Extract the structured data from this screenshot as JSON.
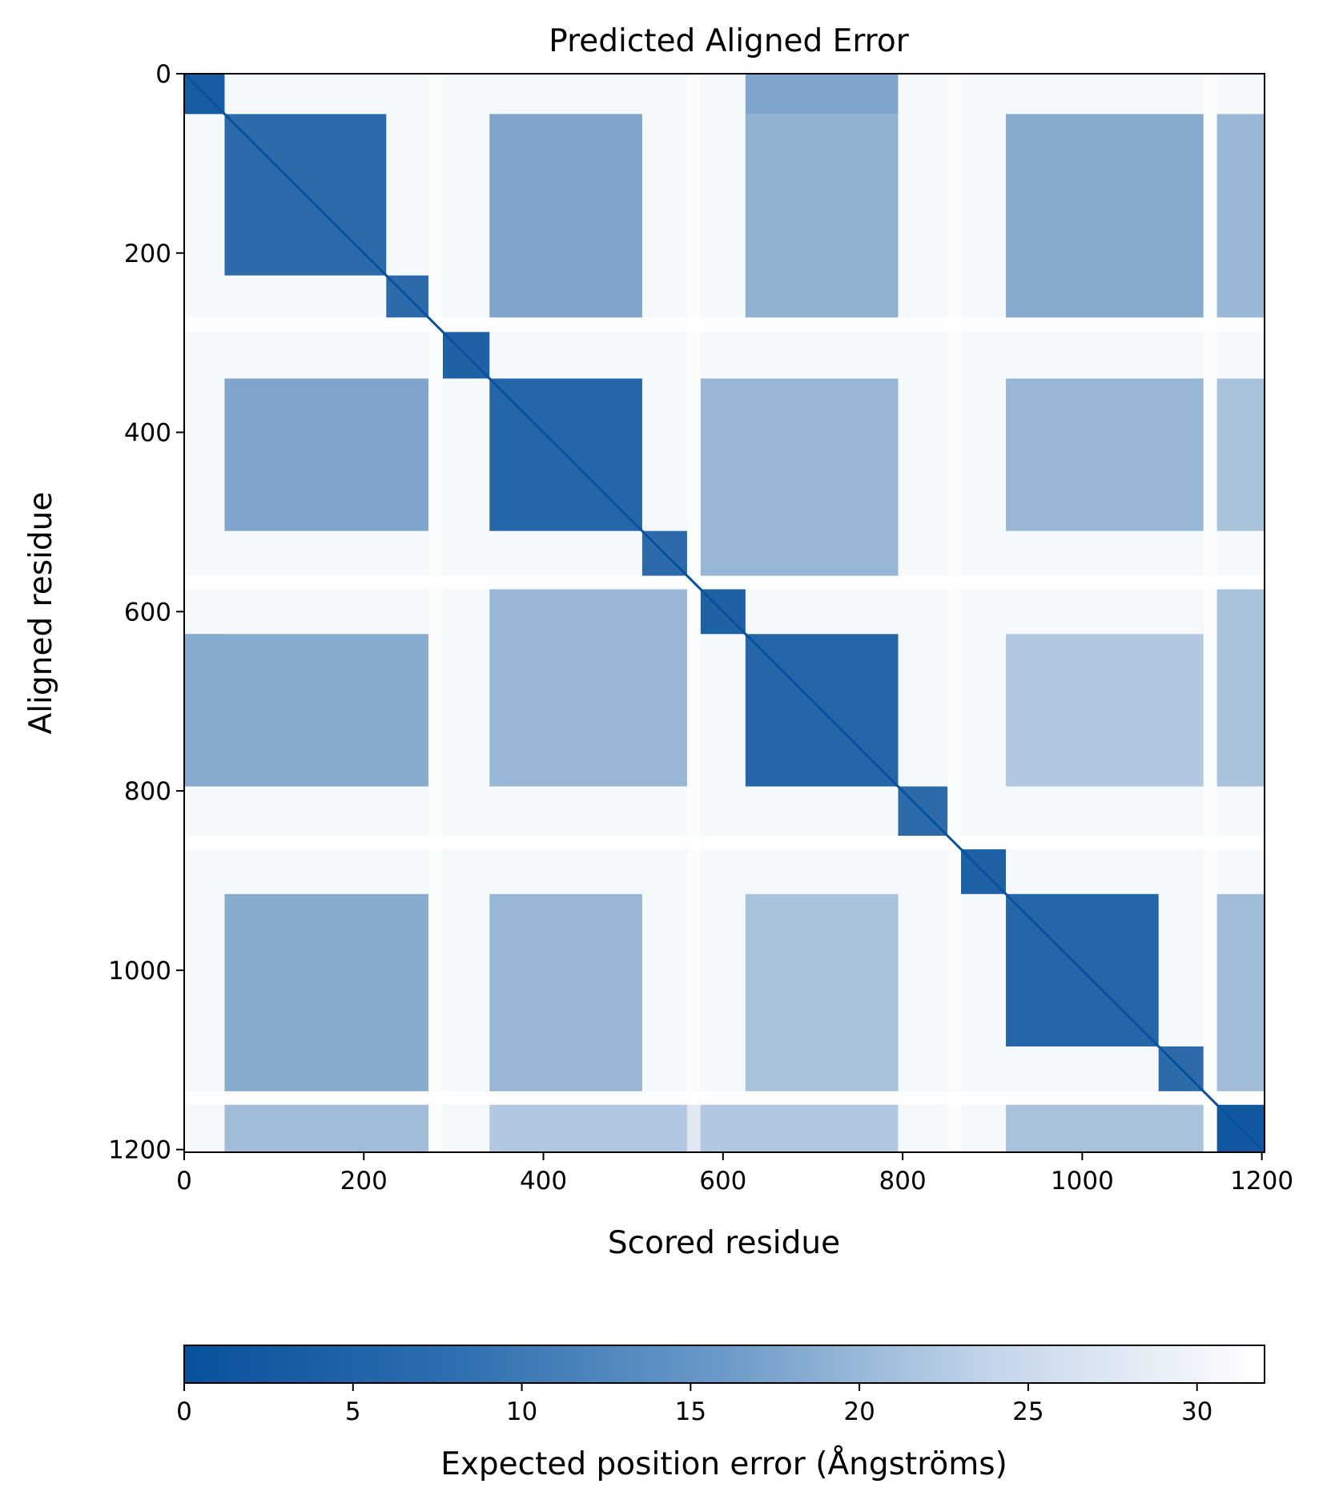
{
  "chart_data": [
    {
      "type": "heatmap",
      "title": "Predicted Aligned Error",
      "xlabel": "Scored residue",
      "ylabel": "Aligned residue",
      "n_residues": 1203,
      "xlim": [
        0,
        1203
      ],
      "ylim": [
        1203,
        0
      ],
      "x_ticks": [
        0,
        200,
        400,
        600,
        800,
        1000,
        1200
      ],
      "y_ticks": [
        0,
        200,
        400,
        600,
        800,
        1000,
        1200
      ],
      "x_tick_labels": [
        "0",
        "200",
        "400",
        "600",
        "800",
        "1000",
        "1200"
      ],
      "y_tick_labels": [
        "0",
        "200",
        "400",
        "600",
        "800",
        "1000",
        "1200"
      ],
      "value_range": [
        0,
        32
      ],
      "colormap": "Blues_r",
      "diagonal_value": 0,
      "background_value": 31,
      "domains": [
        {
          "start": 0,
          "end": 45,
          "value": 3
        },
        {
          "start": 45,
          "end": 225,
          "value": 6
        },
        {
          "start": 225,
          "end": 272,
          "value": 6
        },
        {
          "start": 288,
          "end": 340,
          "value": 4
        },
        {
          "start": 340,
          "end": 510,
          "value": 5
        },
        {
          "start": 510,
          "end": 560,
          "value": 6
        },
        {
          "start": 575,
          "end": 625,
          "value": 4
        },
        {
          "start": 625,
          "end": 795,
          "value": 5
        },
        {
          "start": 795,
          "end": 850,
          "value": 6
        },
        {
          "start": 865,
          "end": 915,
          "value": 4
        },
        {
          "start": 915,
          "end": 1085,
          "value": 5
        },
        {
          "start": 1085,
          "end": 1135,
          "value": 6
        },
        {
          "start": 1150,
          "end": 1203,
          "value": 2
        }
      ],
      "off_diagonal_blocks": [
        {
          "x": [
            45,
            272
          ],
          "y": [
            340,
            510
          ],
          "value": 17
        },
        {
          "x": [
            340,
            510
          ],
          "y": [
            45,
            272
          ],
          "value": 17
        },
        {
          "x": [
            45,
            272
          ],
          "y": [
            915,
            1135
          ],
          "value": 18
        },
        {
          "x": [
            915,
            1135
          ],
          "y": [
            45,
            272
          ],
          "value": 18
        },
        {
          "x": [
            340,
            510
          ],
          "y": [
            915,
            1135
          ],
          "value": 20
        },
        {
          "x": [
            915,
            1135
          ],
          "y": [
            340,
            510
          ],
          "value": 20
        },
        {
          "x": [
            0,
            272
          ],
          "y": [
            625,
            795
          ],
          "value": 18
        },
        {
          "x": [
            625,
            795
          ],
          "y": [
            45,
            272
          ],
          "value": 19
        },
        {
          "x": [
            340,
            560
          ],
          "y": [
            575,
            795
          ],
          "value": 20
        },
        {
          "x": [
            575,
            795
          ],
          "y": [
            340,
            560
          ],
          "value": 20
        },
        {
          "x": [
            625,
            795
          ],
          "y": [
            915,
            1135
          ],
          "value": 22
        },
        {
          "x": [
            915,
            1135
          ],
          "y": [
            625,
            795
          ],
          "value": 23
        },
        {
          "x": [
            625,
            795
          ],
          "y": [
            0,
            45
          ],
          "value": 17
        },
        {
          "x": [
            0,
            45
          ],
          "y": [
            625,
            795
          ],
          "value": 18
        },
        {
          "x": [
            1150,
            1203
          ],
          "y": [
            45,
            272
          ],
          "value": 20
        },
        {
          "x": [
            1150,
            1203
          ],
          "y": [
            340,
            510
          ],
          "value": 22
        },
        {
          "x": [
            1150,
            1203
          ],
          "y": [
            575,
            795
          ],
          "value": 22
        },
        {
          "x": [
            1150,
            1203
          ],
          "y": [
            915,
            1135
          ],
          "value": 21
        },
        {
          "x": [
            45,
            272
          ],
          "y": [
            1150,
            1203
          ],
          "value": 21
        },
        {
          "x": [
            340,
            795
          ],
          "y": [
            1150,
            1203
          ],
          "value": 23
        },
        {
          "x": [
            915,
            1135
          ],
          "y": [
            1150,
            1203
          ],
          "value": 22
        }
      ],
      "linkers": [
        {
          "start": 272,
          "end": 288
        },
        {
          "start": 560,
          "end": 575
        },
        {
          "start": 850,
          "end": 865
        },
        {
          "start": 1135,
          "end": 1150
        }
      ]
    },
    {
      "type": "colorbar",
      "label": "Expected position error (Ångströms)",
      "range": [
        0,
        32
      ],
      "ticks": [
        0,
        5,
        10,
        15,
        20,
        25,
        30
      ],
      "tick_labels": [
        "0",
        "5",
        "10",
        "15",
        "20",
        "25",
        "30"
      ],
      "color_low": "#08519c",
      "color_high": "#ffffff"
    }
  ]
}
